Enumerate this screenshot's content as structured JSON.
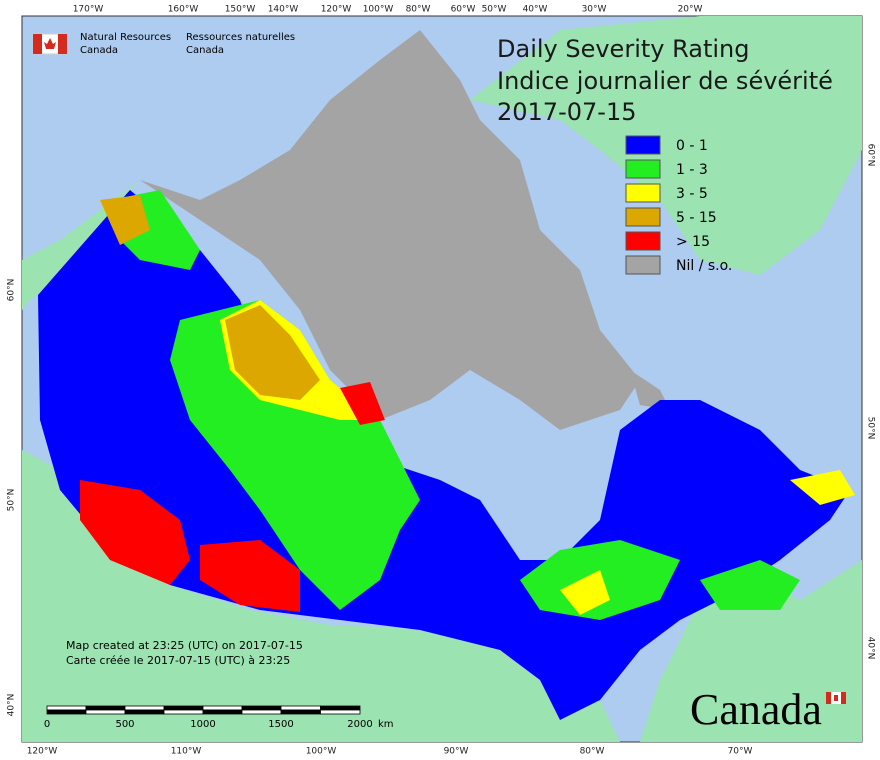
{
  "header": {
    "agency_en": "Natural Resources",
    "agency_en_2": "Canada",
    "agency_fr": "Ressources naturelles",
    "agency_fr_2": "Canada"
  },
  "title": {
    "line1": "Daily Severity Rating",
    "line2": "Indice journalier de sévérité",
    "date": "2017-07-15"
  },
  "legend": [
    {
      "label": "0 - 1",
      "color": "#0000ff"
    },
    {
      "label": "1 - 3",
      "color": "#22ee22"
    },
    {
      "label": "3 - 5",
      "color": "#ffff00"
    },
    {
      "label": "5 - 15",
      "color": "#dca800"
    },
    {
      "label": "> 15",
      "color": "#ff0000"
    },
    {
      "label": "Nil / s.o.",
      "color": "#a4a4a4"
    }
  ],
  "graticule": {
    "top": [
      "170°W",
      "160°W",
      "150°W",
      "140°W",
      "120°W",
      "100°W",
      "80°W",
      "60°W",
      "50°W",
      "40°W",
      "30°W",
      "20°W"
    ],
    "bottom": [
      "120°W",
      "110°W",
      "100°W",
      "90°W",
      "80°W",
      "70°W"
    ],
    "left": [
      "60°N",
      "50°N",
      "40°N"
    ],
    "right": [
      "60°N",
      "50°N",
      "40°N"
    ]
  },
  "credits": [
    "Map created at 23:25 (UTC) on 2017-07-15",
    "Carte créée le 2017-07-15 (UTC) à 23:25"
  ],
  "scale": {
    "ticks": [
      "0",
      "500",
      "1000",
      "1500",
      "2000"
    ],
    "unit": "km"
  },
  "wordmark": "Canada"
}
